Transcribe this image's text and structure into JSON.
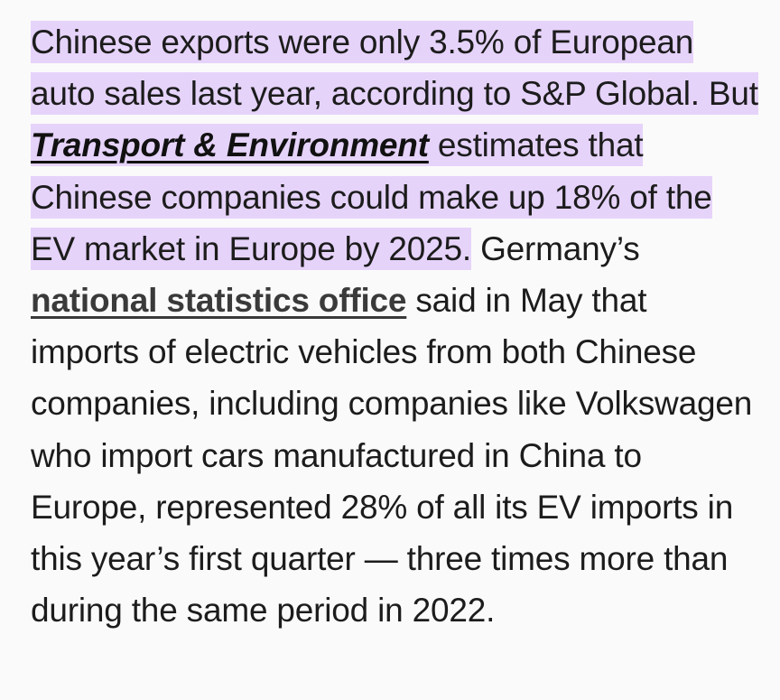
{
  "article": {
    "highlight_start": "Chinese exports were only 3.5% of European auto sales last year, according to S&P Global. But ",
    "link_transport": "Transport & Environment",
    "highlight_end": " estimates that Chinese companies could make up 18% of the EV market in Europe by 2025.",
    "text_after_highlight": " Germany’s ",
    "link_statistics": "national statistics office",
    "text_rest": " said in May that imports of electric vehicles from both Chinese companies, including companies like Volkswagen who import cars manufactured in China to Europe, represented 28% of all its EV imports in this year’s first quarter — three times more than during the same period in 2022."
  },
  "colors": {
    "highlight": "#e6d3fa",
    "text": "#1c1c1c",
    "background": "#fafafa"
  }
}
